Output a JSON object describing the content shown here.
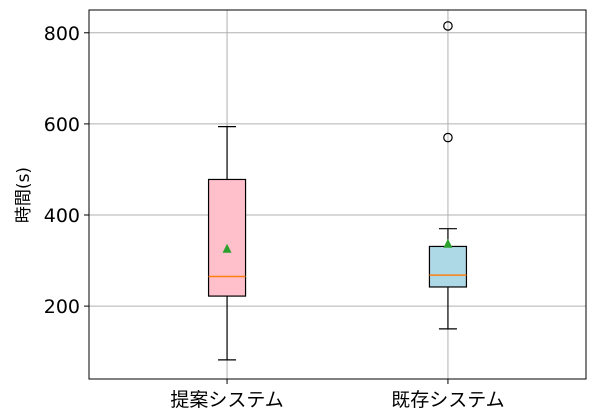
{
  "chart_data": {
    "type": "box",
    "title": "",
    "xlabel": "",
    "ylabel": "時間(s)",
    "ylim": [
      40,
      850
    ],
    "yticks": [
      200,
      400,
      600,
      800
    ],
    "grid": true,
    "legend": "none",
    "categories": [
      "提案システム",
      "既存システム"
    ],
    "boxes": [
      {
        "category": "提案システム",
        "whisker_low": 82,
        "q1": 222,
        "median": 265,
        "q3": 478,
        "whisker_high": 594,
        "mean": 327,
        "outliers": [],
        "fill_color": "#ffc0cb"
      },
      {
        "category": "既存システム",
        "whisker_low": 150,
        "q1": 242,
        "median": 268,
        "q3": 331,
        "whisker_high": 370,
        "mean": 338,
        "outliers": [
          570,
          815
        ],
        "fill_color": "#add8e6"
      }
    ],
    "median_color": "#ff7f0e",
    "mean_color": "#2ca02c"
  }
}
